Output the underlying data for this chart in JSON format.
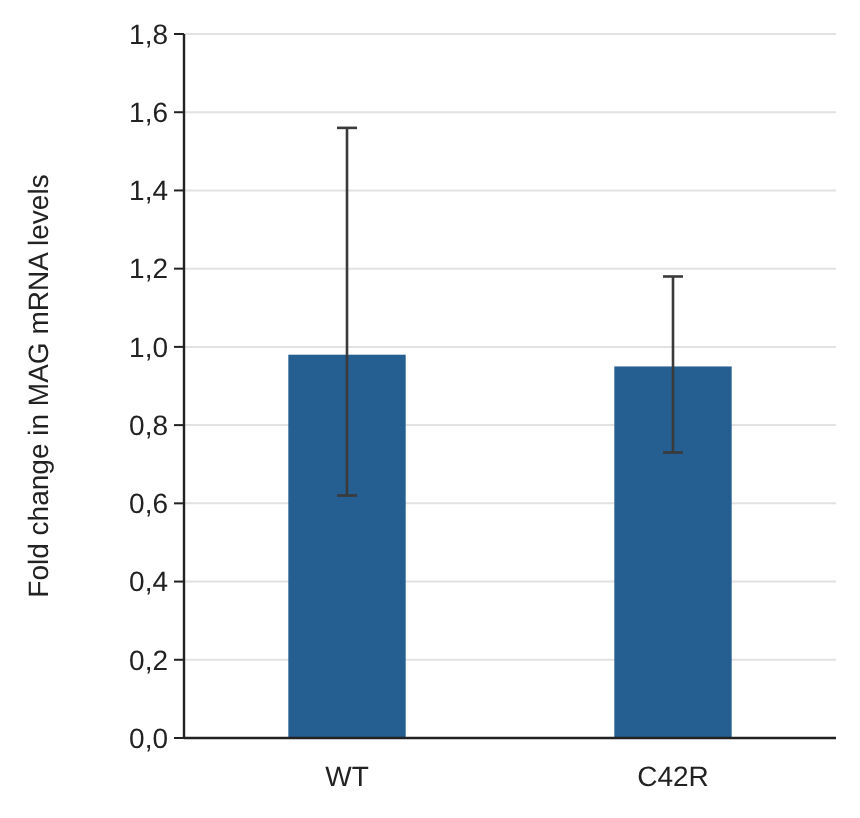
{
  "chart_data": {
    "type": "bar",
    "ylabel": "Fold change in MAG mRNA levels",
    "categories": [
      "WT",
      "C42R"
    ],
    "values": [
      0.98,
      0.95
    ],
    "color": "#255e91",
    "errors": [
      [
        0.62,
        1.56
      ],
      [
        0.73,
        1.18
      ]
    ],
    "ylim": [
      0,
      1.8
    ],
    "yticks": [
      {
        "value": 0,
        "label": "0,0"
      },
      {
        "value": 0.2,
        "label": "0,2"
      },
      {
        "value": 0.4,
        "label": "0,4"
      },
      {
        "value": 0.6,
        "label": "0,6"
      },
      {
        "value": 0.8,
        "label": "0,8"
      },
      {
        "value": 1,
        "label": "1,0"
      },
      {
        "value": 1.2,
        "label": "1,2"
      },
      {
        "value": 1.4,
        "label": "1,4"
      },
      {
        "value": 1.6,
        "label": "1,6"
      },
      {
        "value": 1.8,
        "label": "1,8"
      }
    ],
    "grid": "y"
  }
}
